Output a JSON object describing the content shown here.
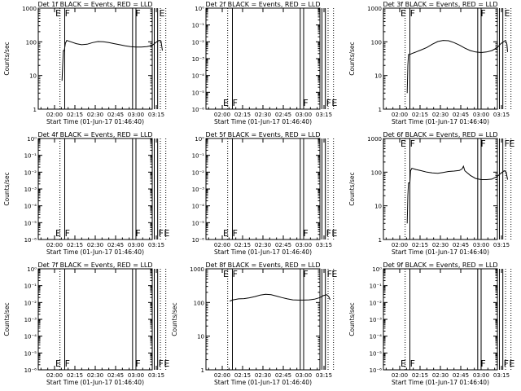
{
  "figure": {
    "x_tick_labels": [
      "02:00",
      "02:15",
      "02:30",
      "02:45",
      "03:00",
      "03:15"
    ],
    "x_label": "Start Time (01-Jun-17 01:46:40)",
    "y_label": "Counts/sec",
    "colors": {
      "axes": "#000000",
      "events": "#000000",
      "lld": "#ff0000"
    }
  },
  "chart_data": [
    {
      "type": "line",
      "title": "Det 1f BLACK = Events, RED = LLD",
      "ylabel": "Counts/sec",
      "xlabel": "Start Time (01-Jun-17 01:46:40)",
      "yscale": "log",
      "ylim": [
        1,
        1000
      ],
      "y_tick_labels": [
        "1",
        "10",
        "100",
        "1000"
      ],
      "x_tick_labels": [
        "02:00",
        "02:15",
        "02:30",
        "02:45",
        "03:00",
        "03:15"
      ],
      "flags_top": [
        {
          "t": 0,
          "label": "E"
        },
        {
          "t": 7,
          "label": "F"
        },
        {
          "t": 59,
          "label": "F"
        },
        {
          "t": 76.5,
          "label": "E"
        }
      ],
      "flags_bottom": [],
      "solid_lines": [
        7.5,
        57.5,
        60,
        73.5,
        76
      ],
      "dotted_lines": [
        4,
        78,
        82
      ],
      "series": [
        {
          "data": [
            [
              5.5,
              7
            ],
            [
              6,
              20
            ],
            [
              6.5,
              55
            ],
            [
              7.2,
              55
            ],
            [
              8,
              90
            ],
            [
              9,
              110
            ],
            [
              12,
              100
            ],
            [
              16,
              88
            ],
            [
              20,
              82
            ],
            [
              24,
              85
            ],
            [
              28,
              95
            ],
            [
              32,
              102
            ],
            [
              36,
              100
            ],
            [
              40,
              95
            ],
            [
              44,
              88
            ],
            [
              48,
              82
            ],
            [
              52,
              76
            ],
            [
              56,
              72
            ],
            [
              60,
              70
            ],
            [
              64,
              70
            ],
            [
              68,
              72
            ],
            [
              72,
              78
            ],
            [
              74.5,
              95
            ],
            [
              77,
              110
            ],
            [
              78.5,
              105
            ],
            [
              79.5,
              55
            ]
          ]
        }
      ]
    },
    {
      "type": "line",
      "title": "Det 2f BLACK = Events, RED = LLD",
      "ylabel": "",
      "xlabel": "Start Time (01-Jun-17 01:46:40)",
      "yscale": "log",
      "ylim": [
        1e-06,
        1
      ],
      "y_tick_labels": [
        "10⁻⁶",
        "10⁻⁵",
        "10⁻⁴",
        "10⁻³",
        "10⁻²",
        "10⁻¹",
        "10⁰"
      ],
      "x_tick_labels": [
        "02:00",
        "02:15",
        "02:30",
        "02:45",
        "03:00",
        "03:15"
      ],
      "flags_top": [],
      "flags_bottom": [
        {
          "t": 0,
          "label": "E"
        },
        {
          "t": 7,
          "label": "F"
        },
        {
          "t": 59,
          "label": "F"
        },
        {
          "t": 76,
          "label": "F"
        },
        {
          "t": 80,
          "label": "E"
        }
      ],
      "solid_lines": [
        7.5,
        57.5,
        60,
        73.5,
        76
      ],
      "dotted_lines": [
        4,
        78,
        82
      ],
      "series": []
    },
    {
      "type": "line",
      "title": "Det 3f BLACK = Events, RED = LLD",
      "ylabel": "Counts/sec",
      "xlabel": "Start Time (01-Jun-17 01:46:40)",
      "yscale": "log",
      "ylim": [
        1,
        1000
      ],
      "y_tick_labels": [
        "1",
        "10",
        "100",
        "1000"
      ],
      "x_tick_labels": [
        "02:00",
        "02:15",
        "02:30",
        "02:45",
        "03:00",
        "03:15"
      ],
      "flags_top": [
        {
          "t": 0,
          "label": "E"
        },
        {
          "t": 7,
          "label": "F"
        },
        {
          "t": 59,
          "label": "F"
        },
        {
          "t": 76.5,
          "label": "E"
        }
      ],
      "flags_bottom": [],
      "solid_lines": [
        7.5,
        57.5,
        60,
        73.5,
        76
      ],
      "dotted_lines": [
        4,
        78,
        82
      ],
      "series": [
        {
          "data": [
            [
              5.5,
              3
            ],
            [
              6,
              20
            ],
            [
              6.5,
              42
            ],
            [
              7.5,
              42
            ],
            [
              9,
              45
            ],
            [
              12,
              50
            ],
            [
              16,
              58
            ],
            [
              20,
              68
            ],
            [
              24,
              85
            ],
            [
              28,
              102
            ],
            [
              32,
              110
            ],
            [
              36,
              108
            ],
            [
              40,
              95
            ],
            [
              44,
              80
            ],
            [
              48,
              65
            ],
            [
              52,
              55
            ],
            [
              56,
              50
            ],
            [
              60,
              48
            ],
            [
              64,
              50
            ],
            [
              68,
              55
            ],
            [
              72,
              68
            ],
            [
              74.5,
              88
            ],
            [
              76.5,
              100
            ],
            [
              78,
              110
            ],
            [
              79,
              85
            ],
            [
              79.5,
              50
            ]
          ]
        }
      ]
    },
    {
      "type": "line",
      "title": "Det 4f BLACK = Events, RED = LLD",
      "ylabel": "Counts/sec",
      "xlabel": "Start Time (01-Jun-17 01:46:40)",
      "yscale": "log",
      "ylim": [
        1e-06,
        1
      ],
      "y_tick_labels": [
        "10⁻⁶",
        "10⁻⁵",
        "10⁻⁴",
        "10⁻³",
        "10⁻²",
        "10⁻¹",
        "10⁰"
      ],
      "x_tick_labels": [
        "02:00",
        "02:15",
        "02:30",
        "02:45",
        "03:00",
        "03:15"
      ],
      "flags_top": [],
      "flags_bottom": [
        {
          "t": 0,
          "label": "E"
        },
        {
          "t": 7,
          "label": "F"
        },
        {
          "t": 59,
          "label": "F"
        },
        {
          "t": 76,
          "label": "F"
        },
        {
          "t": 80,
          "label": "E"
        }
      ],
      "solid_lines": [
        7.5,
        57.5,
        60,
        73.5,
        76
      ],
      "dotted_lines": [
        4,
        78,
        82
      ],
      "series": []
    },
    {
      "type": "line",
      "title": "Det 5f BLACK = Events, RED = LLD",
      "ylabel": "",
      "xlabel": "Start Time (01-Jun-17 01:46:40)",
      "yscale": "log",
      "ylim": [
        1e-06,
        1
      ],
      "y_tick_labels": [
        "10⁻⁶",
        "10⁻⁵",
        "10⁻⁴",
        "10⁻³",
        "10⁻²",
        "10⁻¹",
        "10⁰"
      ],
      "x_tick_labels": [
        "02:00",
        "02:15",
        "02:30",
        "02:45",
        "03:00",
        "03:15"
      ],
      "flags_top": [],
      "flags_bottom": [
        {
          "t": 0,
          "label": "E"
        },
        {
          "t": 7,
          "label": "F"
        },
        {
          "t": 59,
          "label": "F"
        },
        {
          "t": 76,
          "label": "F"
        },
        {
          "t": 80,
          "label": "E"
        }
      ],
      "solid_lines": [
        7.5,
        57.5,
        60,
        73.5,
        76
      ],
      "dotted_lines": [
        4,
        78,
        82
      ],
      "series": []
    },
    {
      "type": "line",
      "title": "Det 6f BLACK = Events, RED = LLD",
      "ylabel": "Counts/sec",
      "xlabel": "Start Time (01-Jun-17 01:46:40)",
      "yscale": "log",
      "ylim": [
        1,
        1000
      ],
      "y_tick_labels": [
        "1",
        "10",
        "100",
        "1000"
      ],
      "x_tick_labels": [
        "02:00",
        "02:15",
        "02:30",
        "02:45",
        "03:00",
        "03:15"
      ],
      "flags_top": [
        {
          "t": 0,
          "label": "E"
        },
        {
          "t": 7,
          "label": "F"
        },
        {
          "t": 59,
          "label": "F"
        },
        {
          "t": 76.5,
          "label": "F"
        },
        {
          "t": 80,
          "label": "E"
        }
      ],
      "flags_bottom": [],
      "solid_lines": [
        7.5,
        57.5,
        60,
        73.5,
        76
      ],
      "dotted_lines": [
        4,
        78,
        82
      ],
      "series": [
        {
          "data": [
            [
              5.5,
              3
            ],
            [
              6,
              20
            ],
            [
              6.5,
              48
            ],
            [
              7.5,
              48
            ],
            [
              8,
              110
            ],
            [
              9,
              130
            ],
            [
              12,
              120
            ],
            [
              16,
              110
            ],
            [
              20,
              100
            ],
            [
              24,
              95
            ],
            [
              28,
              92
            ],
            [
              32,
              98
            ],
            [
              36,
              105
            ],
            [
              40,
              108
            ],
            [
              44,
              112
            ],
            [
              46,
              125
            ],
            [
              47,
              150
            ],
            [
              48,
              110
            ],
            [
              52,
              80
            ],
            [
              56,
              65
            ],
            [
              60,
              60
            ],
            [
              64,
              60
            ],
            [
              68,
              62
            ],
            [
              72,
              75
            ],
            [
              74.5,
              92
            ],
            [
              77,
              110
            ],
            [
              78.5,
              100
            ],
            [
              79.5,
              60
            ]
          ]
        }
      ]
    },
    {
      "type": "line",
      "title": "Det 7f BLACK = Events, RED = LLD",
      "ylabel": "Counts/sec",
      "xlabel": "Start Time (01-Jun-17 01:46:40)",
      "yscale": "log",
      "ylim": [
        1e-06,
        1
      ],
      "y_tick_labels": [
        "10⁻⁶",
        "10⁻⁵",
        "10⁻⁴",
        "10⁻³",
        "10⁻²",
        "10⁻¹",
        "10⁰"
      ],
      "x_tick_labels": [
        "02:00",
        "02:15",
        "02:30",
        "02:45",
        "03:00",
        "03:15"
      ],
      "flags_top": [],
      "flags_bottom": [
        {
          "t": 0,
          "label": "E"
        },
        {
          "t": 7,
          "label": "F"
        },
        {
          "t": 59,
          "label": "F"
        },
        {
          "t": 76,
          "label": "F"
        },
        {
          "t": 80,
          "label": "E"
        }
      ],
      "solid_lines": [
        7.5,
        57.5,
        60,
        73.5,
        76
      ],
      "dotted_lines": [
        4,
        78,
        82
      ],
      "series": []
    },
    {
      "type": "line",
      "title": "Det 8f BLACK = Events, RED = LLD",
      "ylabel": "Counts/sec",
      "xlabel": "Start Time (01-Jun-17 01:46:40)",
      "yscale": "log",
      "ylim": [
        1,
        1000
      ],
      "y_tick_labels": [
        "1",
        "10",
        "100",
        "1000"
      ],
      "x_tick_labels": [
        "02:00",
        "02:15",
        "02:30",
        "02:45",
        "03:00",
        "03:15"
      ],
      "flags_top": [
        {
          "t": 0,
          "label": "E"
        },
        {
          "t": 7,
          "label": "F"
        },
        {
          "t": 59,
          "label": "F"
        },
        {
          "t": 76.5,
          "label": "F"
        },
        {
          "t": 80,
          "label": "E"
        }
      ],
      "flags_bottom": [],
      "solid_lines": [
        7.5,
        57.5,
        60,
        73.5,
        76
      ],
      "dotted_lines": [
        4,
        78,
        82
      ],
      "series": [
        {
          "data": [
            [
              5.5,
              110
            ],
            [
              8,
              120
            ],
            [
              12,
              128
            ],
            [
              16,
              130
            ],
            [
              20,
              138
            ],
            [
              24,
              150
            ],
            [
              28,
              165
            ],
            [
              32,
              175
            ],
            [
              36,
              170
            ],
            [
              40,
              155
            ],
            [
              44,
              140
            ],
            [
              48,
              128
            ],
            [
              52,
              120
            ],
            [
              56,
              118
            ],
            [
              60,
              118
            ],
            [
              64,
              120
            ],
            [
              68,
              125
            ],
            [
              72,
              140
            ],
            [
              74.5,
              160
            ],
            [
              77,
              170
            ],
            [
              78.5,
              150
            ],
            [
              79.5,
              120
            ]
          ]
        }
      ]
    },
    {
      "type": "line",
      "title": "Det 9f BLACK = Events, RED = LLD",
      "ylabel": "Counts/sec",
      "xlabel": "Start Time (01-Jun-17 01:46:40)",
      "yscale": "log",
      "ylim": [
        1e-06,
        1
      ],
      "y_tick_labels": [
        "10⁻⁶",
        "10⁻⁵",
        "10⁻⁴",
        "10⁻³",
        "10⁻²",
        "10⁻¹",
        "10⁰"
      ],
      "x_tick_labels": [
        "02:00",
        "02:15",
        "02:30",
        "02:45",
        "03:00",
        "03:15"
      ],
      "flags_top": [],
      "flags_bottom": [
        {
          "t": 0,
          "label": "E"
        },
        {
          "t": 7,
          "label": "F"
        },
        {
          "t": 59,
          "label": "F"
        },
        {
          "t": 76,
          "label": "F"
        },
        {
          "t": 80,
          "label": "E"
        }
      ],
      "solid_lines": [
        7.5,
        57.5,
        60,
        73.5,
        76
      ],
      "dotted_lines": [
        4,
        78,
        82
      ],
      "series": []
    }
  ]
}
